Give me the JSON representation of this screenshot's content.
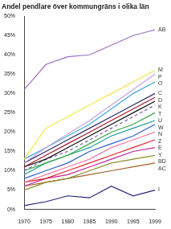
{
  "chart_data": {
    "type": "line",
    "title": "Andel pendlare över kommungräns i olika län",
    "categories": [
      "1970",
      "1975",
      "1980",
      "1985",
      "1990",
      "1995",
      "1999"
    ],
    "ylim": [
      0,
      50
    ],
    "yticks": [
      {
        "value": 0,
        "label": "0%"
      },
      {
        "value": 5,
        "label": "5%"
      },
      {
        "value": 10,
        "label": "10%"
      },
      {
        "value": 15,
        "label": "15%"
      },
      {
        "value": 20,
        "label": "20%"
      },
      {
        "value": 25,
        "label": "25%"
      },
      {
        "value": 30,
        "label": "30%"
      },
      {
        "value": 35,
        "label": "35%"
      },
      {
        "value": 40,
        "label": "40%"
      },
      {
        "value": 45,
        "label": "45%"
      },
      {
        "value": 50,
        "label": "50%"
      }
    ],
    "grid": false,
    "series": [
      {
        "name": "AB",
        "color": "#9b6fc4",
        "values": [
          31,
          37.5,
          39.5,
          40,
          42.5,
          45,
          46.5
        ]
      },
      {
        "name": "M",
        "color": "#f2e64a",
        "values": [
          13,
          21,
          24,
          27,
          30,
          33,
          36
        ]
      },
      {
        "name": "P",
        "color": "#c9a0dc",
        "values": [
          12,
          16,
          19.5,
          23,
          27,
          31,
          35
        ]
      },
      {
        "name": "O",
        "color": "#3fa9e0",
        "values": [
          13,
          16,
          19,
          22,
          26,
          30,
          33
        ]
      },
      {
        "name": "C",
        "color": "#2b2b6b",
        "values": [
          12,
          15,
          18,
          21,
          24,
          27,
          30
        ]
      },
      {
        "name": "D",
        "color": "#a31a2a",
        "values": [
          11,
          14,
          17,
          20,
          23,
          26,
          29
        ]
      },
      {
        "name": "K",
        "color": "#111111",
        "values": [
          11,
          13,
          16,
          19,
          22,
          25,
          28
        ]
      },
      {
        "name": "T",
        "color": "#7a5fa8",
        "line_style": "dashed",
        "values": [
          10,
          13,
          15,
          18,
          21,
          24,
          27
        ]
      },
      {
        "name": "U",
        "color": "#3aa845",
        "values": [
          10,
          12,
          14,
          17,
          20,
          22,
          25
        ]
      },
      {
        "name": "W",
        "color": "#1f9e96",
        "values": [
          9,
          12,
          14,
          16,
          19,
          21,
          23
        ]
      },
      {
        "name": "N",
        "color": "#2f5fd0",
        "values": [
          8,
          10,
          12,
          15,
          17,
          19,
          22
        ]
      },
      {
        "name": "Z",
        "color": "#f07aa8",
        "values": [
          7,
          9,
          11,
          13,
          16,
          18,
          20
        ]
      },
      {
        "name": "E",
        "color": "#e2262a",
        "values": [
          7,
          8,
          10,
          12,
          14,
          16,
          18
        ]
      },
      {
        "name": "Y",
        "color": "#c0269a",
        "values": [
          6,
          8,
          9,
          11,
          13,
          15,
          16
        ]
      },
      {
        "name": "BD",
        "color": "#8c8c2a",
        "values": [
          5,
          7,
          8,
          10,
          12,
          13,
          14
        ]
      },
      {
        "name": "AC",
        "color": "#a0632a",
        "values": [
          6,
          7,
          8,
          9,
          10,
          11,
          12
        ]
      },
      {
        "name": "I",
        "color": "#27247a",
        "values": [
          1,
          2,
          3.5,
          3,
          6,
          3.5,
          5
        ]
      }
    ]
  }
}
